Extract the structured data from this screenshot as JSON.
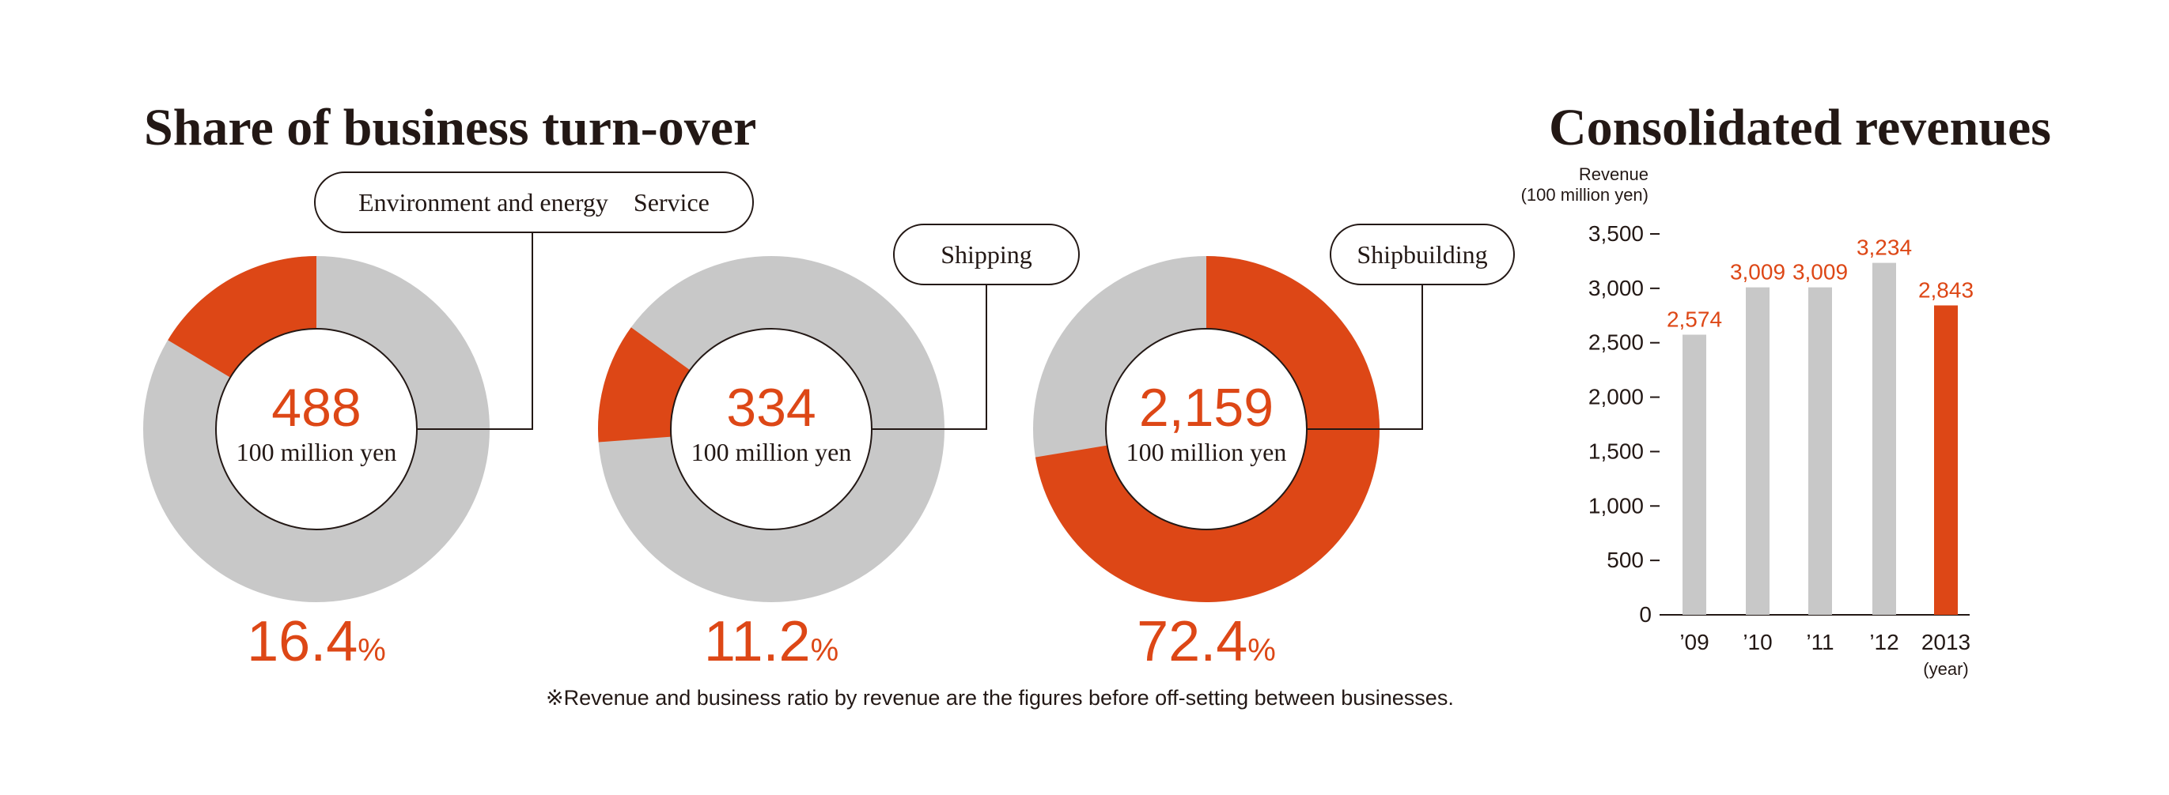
{
  "colors": {
    "accent": "#dd4716",
    "gray": "#c8c8c8",
    "text": "#231815",
    "line": "#231815"
  },
  "share": {
    "title": "Share of business turn-over",
    "unit": "100 million yen",
    "percent_sign": "%",
    "donuts": [
      {
        "label": "Environment and energy　Service",
        "value": "488",
        "percent": "16.4",
        "fraction": 0.164,
        "start_offset": -0.164
      },
      {
        "label": "Shipping",
        "value": "334",
        "percent": "11.2",
        "fraction": 0.112,
        "start_offset": -0.262
      },
      {
        "label": "Shipbuilding",
        "value": "2,159",
        "percent": "72.4",
        "fraction": 0.724,
        "start_offset": 0.0
      }
    ],
    "footnote": "※Revenue and business ratio by revenue are the figures before off-setting between businesses."
  },
  "revenues": {
    "title": "Consolidated revenues",
    "ylabel_line1": "Revenue",
    "ylabel_line2": "(100 million yen)",
    "year_unit": "(year)"
  },
  "chart_data": [
    {
      "type": "pie",
      "title": "Share of business turn-over",
      "categories": [
        "Environment and energy　Service",
        "Shipping",
        "Shipbuilding"
      ],
      "values": [
        488,
        334,
        2159
      ],
      "percentages": [
        16.4,
        11.2,
        72.4
      ]
    },
    {
      "type": "bar",
      "title": "Consolidated revenues",
      "categories": [
        "'09",
        "'10",
        "'11",
        "'12",
        "2013"
      ],
      "values": [
        2574,
        3009,
        3009,
        3234,
        2843
      ],
      "value_labels": [
        "2,574",
        "3,009",
        "3,009",
        "3,234",
        "2,843"
      ],
      "highlight_index": 4,
      "ylabel": "Revenue (100 million yen)",
      "xlabel": "(year)",
      "ylim": [
        0,
        3500
      ],
      "yticks": [
        0,
        500,
        1000,
        1500,
        2000,
        2500,
        3000,
        3500
      ],
      "ytick_labels": [
        "0",
        "500",
        "1,000",
        "1,500",
        "2,000",
        "2,500",
        "3,000",
        "3,500"
      ]
    }
  ]
}
